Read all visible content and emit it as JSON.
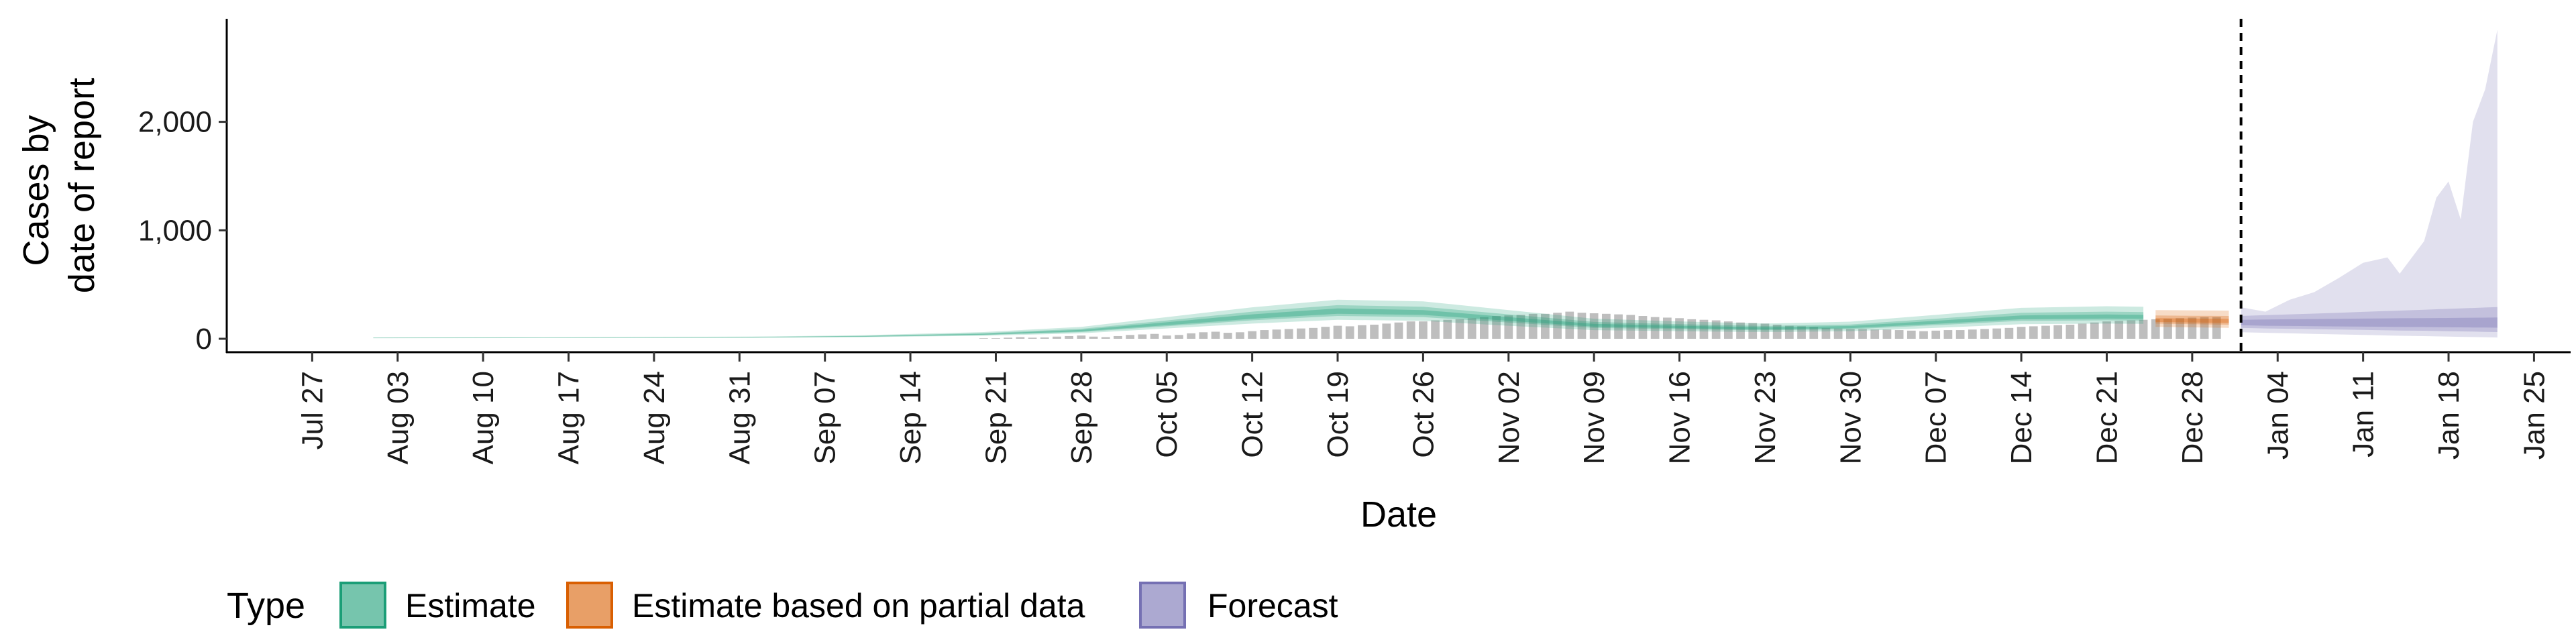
{
  "chart_data": {
    "type": "area",
    "xlabel": "Date",
    "ylabel_lines": [
      "Cases by",
      "date of report"
    ],
    "ylim": [
      0,
      2950
    ],
    "yticks": [
      0,
      1000,
      2000
    ],
    "ytick_labels": [
      "0",
      "1,000",
      "2,000"
    ],
    "xlim": [
      "2020-07-20",
      "2021-01-28"
    ],
    "xtick_dates": [
      "2020-07-27",
      "2020-08-03",
      "2020-08-10",
      "2020-08-17",
      "2020-08-24",
      "2020-08-31",
      "2020-09-07",
      "2020-09-14",
      "2020-09-21",
      "2020-09-28",
      "2020-10-05",
      "2020-10-12",
      "2020-10-19",
      "2020-10-26",
      "2020-11-02",
      "2020-11-09",
      "2020-11-16",
      "2020-11-23",
      "2020-11-30",
      "2020-12-07",
      "2020-12-14",
      "2020-12-21",
      "2020-12-28",
      "2021-01-04",
      "2021-01-11",
      "2021-01-18",
      "2021-01-25"
    ],
    "xtick_labels": [
      "Jul 27",
      "Aug 03",
      "Aug 10",
      "Aug 17",
      "Aug 24",
      "Aug 31",
      "Sep 07",
      "Sep 14",
      "Sep 21",
      "Sep 28",
      "Oct 05",
      "Oct 12",
      "Oct 19",
      "Oct 26",
      "Nov 02",
      "Nov 09",
      "Nov 16",
      "Nov 23",
      "Nov 30",
      "Dec 07",
      "Dec 14",
      "Dec 21",
      "Dec 28",
      "Jan 04",
      "Jan 11",
      "Jan 18",
      "Jan 25"
    ],
    "forecast_date": "2021-01-01",
    "observed": {
      "start": "2020-09-20",
      "values": [
        5,
        5,
        10,
        15,
        10,
        12,
        20,
        25,
        30,
        20,
        15,
        25,
        35,
        40,
        45,
        30,
        35,
        50,
        60,
        65,
        55,
        60,
        70,
        80,
        85,
        90,
        95,
        100,
        110,
        120,
        115,
        125,
        130,
        140,
        150,
        160,
        160,
        170,
        175,
        180,
        190,
        200,
        210,
        215,
        220,
        230,
        230,
        240,
        250,
        240,
        235,
        230,
        225,
        220,
        210,
        200,
        195,
        190,
        180,
        175,
        170,
        160,
        150,
        145,
        140,
        130,
        120,
        115,
        110,
        100,
        95,
        90,
        90,
        85,
        85,
        80,
        75,
        70,
        75,
        80,
        80,
        85,
        90,
        95,
        100,
        110,
        115,
        120,
        125,
        130,
        140,
        150,
        160,
        165,
        170,
        175,
        180,
        185,
        190,
        195,
        200,
        200
      ]
    },
    "series": [
      {
        "name": "Estimate",
        "color": "#1b9e77",
        "points": [
          {
            "x": "2020-08-01",
            "lo90": 5,
            "lo50": 6,
            "lo20": 7,
            "median": 8,
            "hi20": 9,
            "hi50": 10,
            "hi90": 11
          },
          {
            "x": "2020-08-15",
            "lo90": 7,
            "lo50": 8,
            "lo20": 9,
            "median": 10,
            "hi20": 11,
            "hi50": 12,
            "hi90": 14
          },
          {
            "x": "2020-09-01",
            "lo90": 9,
            "lo50": 11,
            "lo20": 12,
            "median": 14,
            "hi20": 15,
            "hi50": 17,
            "hi90": 20
          },
          {
            "x": "2020-09-10",
            "lo90": 15,
            "lo50": 18,
            "lo20": 20,
            "median": 22,
            "hi20": 24,
            "hi50": 27,
            "hi90": 32
          },
          {
            "x": "2020-09-20",
            "lo90": 28,
            "lo50": 34,
            "lo20": 38,
            "median": 42,
            "hi20": 46,
            "hi50": 52,
            "hi90": 62
          },
          {
            "x": "2020-09-28",
            "lo90": 50,
            "lo50": 62,
            "lo20": 68,
            "median": 75,
            "hi20": 82,
            "hi50": 92,
            "hi90": 110
          },
          {
            "x": "2020-10-05",
            "lo90": 95,
            "lo50": 115,
            "lo20": 125,
            "median": 140,
            "hi20": 152,
            "hi50": 168,
            "hi90": 200
          },
          {
            "x": "2020-10-12",
            "lo90": 140,
            "lo50": 170,
            "lo20": 185,
            "median": 205,
            "hi20": 225,
            "hi50": 250,
            "hi90": 290
          },
          {
            "x": "2020-10-19",
            "lo90": 175,
            "lo50": 210,
            "lo20": 230,
            "median": 255,
            "hi20": 280,
            "hi50": 310,
            "hi90": 360
          },
          {
            "x": "2020-10-26",
            "lo90": 165,
            "lo50": 200,
            "lo20": 220,
            "median": 245,
            "hi20": 265,
            "hi50": 295,
            "hi90": 345
          },
          {
            "x": "2020-11-02",
            "lo90": 120,
            "lo50": 150,
            "lo20": 165,
            "median": 185,
            "hi20": 200,
            "hi50": 225,
            "hi90": 265
          },
          {
            "x": "2020-11-09",
            "lo90": 80,
            "lo50": 100,
            "lo20": 112,
            "median": 125,
            "hi20": 138,
            "hi50": 155,
            "hi90": 185
          },
          {
            "x": "2020-11-16",
            "lo90": 70,
            "lo50": 88,
            "lo20": 98,
            "median": 110,
            "hi20": 120,
            "hi50": 135,
            "hi90": 160
          },
          {
            "x": "2020-11-23",
            "lo90": 62,
            "lo50": 78,
            "lo20": 86,
            "median": 96,
            "hi20": 106,
            "hi50": 118,
            "hi90": 140
          },
          {
            "x": "2020-11-30",
            "lo90": 70,
            "lo50": 88,
            "lo20": 98,
            "median": 108,
            "hi20": 118,
            "hi50": 132,
            "hi90": 158
          },
          {
            "x": "2020-12-07",
            "lo90": 100,
            "lo50": 125,
            "lo20": 138,
            "median": 152,
            "hi20": 166,
            "hi50": 185,
            "hi90": 220
          },
          {
            "x": "2020-12-14",
            "lo90": 135,
            "lo50": 165,
            "lo20": 180,
            "median": 198,
            "hi20": 215,
            "hi50": 240,
            "hi90": 285
          },
          {
            "x": "2020-12-21",
            "lo90": 140,
            "lo50": 170,
            "lo20": 186,
            "median": 205,
            "hi20": 224,
            "hi50": 250,
            "hi90": 300
          },
          {
            "x": "2020-12-24",
            "lo90": 138,
            "lo50": 168,
            "lo20": 184,
            "median": 202,
            "hi20": 220,
            "hi50": 246,
            "hi90": 295
          }
        ]
      },
      {
        "name": "Estimate based on partial data",
        "color": "#d95f02",
        "points": [
          {
            "x": "2020-12-25",
            "lo90": 110,
            "lo50": 140,
            "lo20": 155,
            "median": 172,
            "hi20": 190,
            "hi50": 215,
            "hi90": 265
          },
          {
            "x": "2020-12-28",
            "lo90": 105,
            "lo50": 135,
            "lo20": 150,
            "median": 168,
            "hi20": 186,
            "hi50": 212,
            "hi90": 262
          },
          {
            "x": "2020-12-31",
            "lo90": 100,
            "lo50": 130,
            "lo20": 146,
            "median": 165,
            "hi20": 184,
            "hi50": 210,
            "hi90": 260
          }
        ]
      },
      {
        "name": "Forecast",
        "color": "#7570b3",
        "points": [
          {
            "x": "2021-01-01",
            "lo90": 60,
            "lo50": 100,
            "lo20": 125,
            "median": 150,
            "hi20": 175,
            "hi50": 210,
            "hi90": 290
          },
          {
            "x": "2021-01-03",
            "lo90": 55,
            "lo50": 95,
            "lo20": 120,
            "median": 150,
            "hi20": 178,
            "hi50": 218,
            "hi90": 250
          },
          {
            "x": "2021-01-05",
            "lo90": 50,
            "lo50": 92,
            "lo20": 118,
            "median": 150,
            "hi20": 180,
            "hi50": 225,
            "hi90": 360
          },
          {
            "x": "2021-01-07",
            "lo90": 45,
            "lo50": 88,
            "lo20": 116,
            "median": 150,
            "hi20": 182,
            "hi50": 232,
            "hi90": 430
          },
          {
            "x": "2021-01-09",
            "lo90": 40,
            "lo50": 85,
            "lo20": 114,
            "median": 150,
            "hi20": 184,
            "hi50": 240,
            "hi90": 560
          },
          {
            "x": "2021-01-11",
            "lo90": 35,
            "lo50": 82,
            "lo20": 112,
            "median": 150,
            "hi20": 186,
            "hi50": 248,
            "hi90": 700
          },
          {
            "x": "2021-01-13",
            "lo90": 30,
            "lo50": 78,
            "lo20": 110,
            "median": 150,
            "hi20": 188,
            "hi50": 256,
            "hi90": 750
          },
          {
            "x": "2021-01-14",
            "lo90": 28,
            "lo50": 76,
            "lo20": 109,
            "median": 150,
            "hi20": 189,
            "hi50": 260,
            "hi90": 600
          },
          {
            "x": "2021-01-16",
            "lo90": 25,
            "lo50": 74,
            "lo20": 108,
            "median": 150,
            "hi20": 190,
            "hi50": 268,
            "hi90": 900
          },
          {
            "x": "2021-01-17",
            "lo90": 22,
            "lo50": 72,
            "lo20": 107,
            "median": 150,
            "hi20": 191,
            "hi50": 272,
            "hi90": 1300
          },
          {
            "x": "2021-01-18",
            "lo90": 20,
            "lo50": 70,
            "lo20": 106,
            "median": 150,
            "hi20": 192,
            "hi50": 276,
            "hi90": 1450
          },
          {
            "x": "2021-01-19",
            "lo90": 18,
            "lo50": 68,
            "lo20": 105,
            "median": 150,
            "hi20": 193,
            "hi50": 280,
            "hi90": 1100
          },
          {
            "x": "2021-01-20",
            "lo90": 16,
            "lo50": 66,
            "lo20": 104,
            "median": 150,
            "hi20": 194,
            "hi50": 284,
            "hi90": 2000
          },
          {
            "x": "2021-01-21",
            "lo90": 14,
            "lo50": 64,
            "lo20": 103,
            "median": 150,
            "hi20": 195,
            "hi50": 288,
            "hi90": 2300
          },
          {
            "x": "2021-01-22",
            "lo90": 12,
            "lo50": 62,
            "lo20": 102,
            "median": 150,
            "hi20": 196,
            "hi50": 292,
            "hi90": 2850
          }
        ]
      }
    ],
    "legend": {
      "title": "Type",
      "position": "bottom",
      "items": [
        {
          "label": "Estimate",
          "color": "#1b9e77"
        },
        {
          "label": "Estimate based on partial data",
          "color": "#d95f02"
        },
        {
          "label": "Forecast",
          "color": "#7570b3"
        }
      ]
    }
  }
}
